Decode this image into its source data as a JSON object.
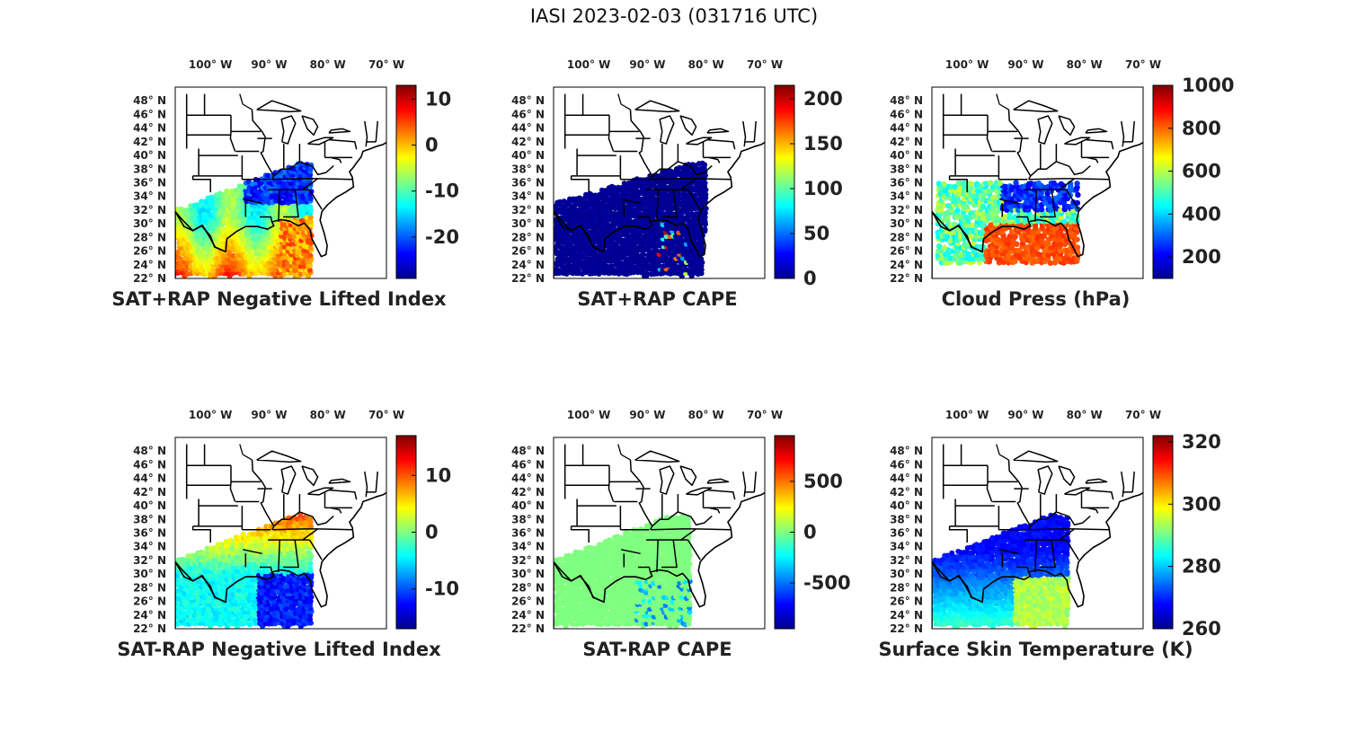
{
  "figure": {
    "title": "IASI 2023-02-03 (031716 UTC)"
  },
  "colors": {
    "jet": [
      "#00008f",
      "#0000ff",
      "#0080ff",
      "#00ffff",
      "#80ff80",
      "#ffff00",
      "#ff8000",
      "#ff0000",
      "#800000"
    ],
    "land": "#ffffff",
    "borders": "#000000"
  },
  "map_axes": {
    "lon_ticks": [
      "100° W",
      "90° W",
      "80° W",
      "70° W"
    ],
    "lat_ticks": [
      "48° N",
      "46° N",
      "44° N",
      "42° N",
      "40° N",
      "38° N",
      "36° N",
      "34° N",
      "32° N",
      "30° N",
      "28° N",
      "26° N",
      "24° N",
      "22° N"
    ],
    "lon_range": [
      -106,
      -70
    ],
    "lat_range": [
      22,
      50
    ]
  },
  "panels": [
    {
      "id": "sat-rap-negative-lifted-index",
      "title": "SAT+RAP Negative Lifted Index",
      "colorbar": {
        "min": -29,
        "max": 13,
        "ticks": [
          "10",
          "0",
          "-10",
          "-20"
        ],
        "tick_values": [
          10,
          0,
          -10,
          -20
        ]
      },
      "field": "li_total"
    },
    {
      "id": "sat-rap-cape",
      "title": "SAT+RAP CAPE",
      "colorbar": {
        "min": 0,
        "max": 215,
        "ticks": [
          "200",
          "150",
          "100",
          "50",
          "0"
        ],
        "tick_values": [
          200,
          150,
          100,
          50,
          0
        ]
      },
      "field": "cape_total"
    },
    {
      "id": "cloud-press",
      "title": "Cloud Press (hPa)",
      "colorbar": {
        "min": 100,
        "max": 1000,
        "ticks": [
          "1000",
          "800",
          "600",
          "400",
          "200"
        ],
        "tick_values": [
          1000,
          800,
          600,
          400,
          200
        ]
      },
      "field": "cloud_press"
    },
    {
      "id": "sat-minus-rap-negative-lifted-index",
      "title": "SAT-RAP Negative Lifted Index",
      "colorbar": {
        "min": -17,
        "max": 17,
        "ticks": [
          "10",
          "0",
          "-10"
        ],
        "tick_values": [
          10,
          0,
          -10
        ]
      },
      "field": "li_diff"
    },
    {
      "id": "sat-minus-rap-cape",
      "title": "SAT-RAP CAPE",
      "colorbar": {
        "min": -950,
        "max": 950,
        "ticks": [
          "500",
          "0",
          "-500"
        ],
        "tick_values": [
          500,
          0,
          -500
        ]
      },
      "field": "cape_diff"
    },
    {
      "id": "surface-skin-temperature",
      "title": "Surface Skin Temperature (K)",
      "colorbar": {
        "min": 260,
        "max": 322,
        "ticks": [
          "320",
          "300",
          "280",
          "260"
        ],
        "tick_values": [
          320,
          300,
          280,
          260
        ]
      },
      "field": "skin_temp"
    }
  ]
}
